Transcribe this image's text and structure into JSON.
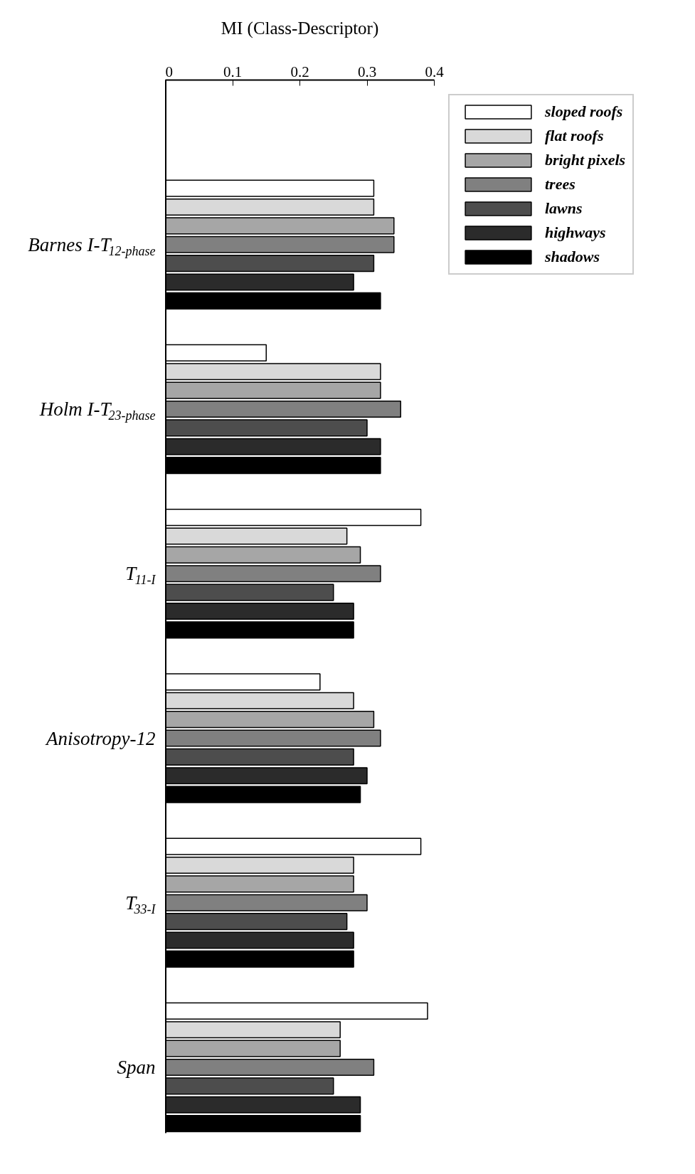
{
  "chart_data": {
    "type": "bar",
    "orientation": "horizontal",
    "xlabel": "MI (Class-Descriptor)",
    "categories": [
      "Barnes I-T$_{12-phase}$",
      "Holm I-T$_{23-phase}$",
      "T$_{11-I}$",
      "Anisotropy-12",
      "T$_{33-I}$",
      "Span"
    ],
    "xlim": [
      0,
      0.4
    ],
    "xticks": [
      0,
      0.1,
      0.2,
      0.3,
      0.4
    ],
    "legend": "top right",
    "series": [
      {
        "name": "sloped roofs",
        "color": "#ffffff",
        "values": [
          0.31,
          0.15,
          0.38,
          0.23,
          0.38,
          0.39
        ]
      },
      {
        "name": "flat roofs",
        "color": "#d9d9d9",
        "values": [
          0.31,
          0.32,
          0.27,
          0.28,
          0.28,
          0.26
        ]
      },
      {
        "name": "bright pixels",
        "color": "#a6a6a6",
        "values": [
          0.34,
          0.32,
          0.29,
          0.31,
          0.28,
          0.26
        ]
      },
      {
        "name": "trees",
        "color": "#808080",
        "values": [
          0.34,
          0.35,
          0.32,
          0.32,
          0.3,
          0.31
        ]
      },
      {
        "name": "lawns",
        "color": "#4d4d4d",
        "values": [
          0.31,
          0.3,
          0.25,
          0.28,
          0.27,
          0.25
        ]
      },
      {
        "name": "highways",
        "color": "#2b2b2b",
        "values": [
          0.28,
          0.32,
          0.28,
          0.3,
          0.28,
          0.29
        ]
      },
      {
        "name": "shadows",
        "color": "#000000",
        "values": [
          0.32,
          0.32,
          0.28,
          0.29,
          0.28,
          0.29
        ]
      }
    ]
  }
}
